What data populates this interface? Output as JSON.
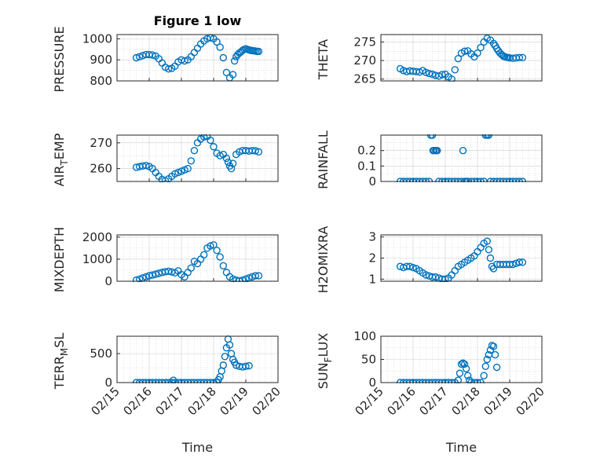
{
  "figure": {
    "title": "Figure 1 low",
    "xlabel": "Time",
    "marker_color": "#0072BD"
  },
  "chart_data": [
    {
      "type": "scatter",
      "ylabel": "PRESSURE",
      "ylabel_sub": "",
      "ylabel_tail": "",
      "ylim": [
        800,
        1020
      ],
      "yticks": [
        800,
        900,
        1000
      ],
      "yminor": [
        850,
        950
      ],
      "xlim": [
        "02/15",
        "02/20"
      ],
      "xticks": [
        "02/15",
        "02/16",
        "02/17",
        "02/18",
        "02/19",
        "02/20"
      ],
      "x_tick_labels_visible": false,
      "grid": true,
      "series": [
        {
          "marker": "circle",
          "x": [
            0.6,
            0.7,
            0.8,
            0.9,
            1.0,
            1.1,
            1.2,
            1.3,
            1.4,
            1.5,
            1.6,
            1.7,
            1.8,
            1.9,
            2.0,
            2.1,
            2.2,
            2.3,
            2.4,
            2.5,
            2.6,
            2.7,
            2.8,
            2.9,
            3.0,
            3.1,
            3.2,
            3.3,
            3.4,
            3.5,
            3.6,
            3.65,
            3.7,
            3.75,
            3.8,
            3.85,
            3.9,
            3.95,
            4.0,
            4.05,
            4.1,
            4.15,
            4.2,
            4.25,
            4.3,
            4.35,
            4.4
          ],
          "y": [
            910,
            915,
            920,
            925,
            925,
            923,
            918,
            905,
            885,
            865,
            857,
            860,
            870,
            890,
            900,
            895,
            900,
            915,
            935,
            955,
            975,
            990,
            1000,
            1005,
            1000,
            985,
            960,
            910,
            840,
            815,
            830,
            895,
            915,
            925,
            932,
            938,
            945,
            950,
            952,
            950,
            947,
            945,
            944,
            943,
            942,
            940,
            940
          ]
        }
      ]
    },
    {
      "type": "scatter",
      "ylabel": "THETA",
      "ylabel_sub": "",
      "ylabel_tail": "",
      "ylim": [
        264.5,
        277
      ],
      "yticks": [
        265,
        270,
        275
      ],
      "yminor": [
        267.5,
        272.5
      ],
      "xlim": [
        "02/15",
        "02/20"
      ],
      "xticks": [
        "02/15",
        "02/16",
        "02/17",
        "02/18",
        "02/19",
        "02/20"
      ],
      "x_tick_labels_visible": false,
      "grid": true,
      "series": [
        {
          "marker": "circle",
          "x": [
            0.6,
            0.7,
            0.8,
            0.9,
            1.0,
            1.1,
            1.2,
            1.3,
            1.4,
            1.5,
            1.6,
            1.7,
            1.8,
            1.9,
            2.0,
            2.1,
            2.2,
            2.3,
            2.4,
            2.5,
            2.6,
            2.7,
            2.8,
            2.9,
            3.0,
            3.1,
            3.2,
            3.3,
            3.4,
            3.5,
            3.55,
            3.6,
            3.65,
            3.7,
            3.75,
            3.8,
            3.85,
            3.9,
            3.95,
            4.0,
            4.1,
            4.2,
            4.3,
            4.4
          ],
          "y": [
            267.8,
            267.3,
            267.0,
            267.2,
            267.1,
            267.0,
            266.9,
            267.3,
            266.8,
            266.5,
            266.3,
            266.0,
            265.8,
            266.2,
            266.3,
            265.6,
            265.0,
            267.5,
            270.5,
            272.0,
            272.5,
            272.6,
            271.8,
            271.0,
            272.0,
            273.5,
            275.0,
            276.0,
            275.5,
            274.6,
            274.0,
            273.2,
            272.6,
            272.0,
            271.6,
            271.2,
            271.0,
            270.9,
            270.8,
            270.7,
            270.6,
            270.7,
            270.8,
            270.8
          ]
        }
      ]
    },
    {
      "type": "scatter",
      "ylabel": "AIR",
      "ylabel_sub": "T",
      "ylabel_tail": "EMP",
      "ylim": [
        255,
        273
      ],
      "yticks": [
        260,
        270
      ],
      "yminor": [
        255,
        265
      ],
      "xlim": [
        "02/15",
        "02/20"
      ],
      "xticks": [
        "02/15",
        "02/16",
        "02/17",
        "02/18",
        "02/19",
        "02/20"
      ],
      "x_tick_labels_visible": false,
      "grid": true,
      "series": [
        {
          "marker": "circle",
          "x": [
            0.6,
            0.7,
            0.8,
            0.9,
            1.0,
            1.1,
            1.2,
            1.3,
            1.4,
            1.5,
            1.6,
            1.7,
            1.8,
            1.9,
            2.0,
            2.1,
            2.2,
            2.3,
            2.4,
            2.5,
            2.6,
            2.7,
            2.8,
            2.9,
            3.0,
            3.1,
            3.2,
            3.3,
            3.4,
            3.45,
            3.5,
            3.55,
            3.6,
            3.7,
            3.8,
            3.9,
            4.0,
            4.1,
            4.2,
            4.3,
            4.4
          ],
          "y": [
            260.5,
            260.8,
            261.0,
            261.2,
            260.8,
            260.0,
            258.5,
            257.0,
            255.8,
            255.3,
            256.0,
            257.0,
            258.0,
            258.5,
            259.0,
            259.5,
            260.0,
            263.0,
            267.0,
            270.0,
            271.5,
            272.3,
            272.5,
            271.0,
            268.5,
            266.0,
            265.0,
            265.5,
            264.0,
            262.5,
            261.0,
            260.0,
            262.0,
            265.5,
            266.5,
            267.0,
            267.0,
            266.8,
            267.0,
            266.9,
            266.5
          ]
        }
      ]
    },
    {
      "type": "scatter",
      "ylabel": "RAINFALL",
      "ylabel_sub": "",
      "ylabel_tail": "",
      "ylim": [
        0,
        0.3
      ],
      "yticks": [
        0,
        0.1,
        0.2
      ],
      "yminor": [
        0.05,
        0.15,
        0.25
      ],
      "xlim": [
        "02/15",
        "02/20"
      ],
      "xticks": [
        "02/15",
        "02/16",
        "02/17",
        "02/18",
        "02/19",
        "02/20"
      ],
      "x_tick_labels_visible": false,
      "grid": true,
      "series": [
        {
          "marker": "circle",
          "x": [
            0.6,
            0.7,
            0.8,
            0.9,
            1.0,
            1.1,
            1.2,
            1.3,
            1.4,
            1.5,
            1.55,
            1.6,
            1.62,
            1.65,
            1.7,
            1.72,
            1.75,
            1.8,
            1.9,
            2.0,
            2.1,
            2.2,
            2.3,
            2.4,
            2.5,
            2.55,
            2.6,
            2.65,
            2.7,
            2.8,
            2.9,
            3.0,
            3.1,
            3.2,
            3.25,
            3.3,
            3.35,
            3.4,
            3.5,
            3.6,
            3.7,
            3.8,
            3.9,
            4.0,
            4.1,
            4.2,
            4.3,
            4.4
          ],
          "y": [
            0,
            0,
            0,
            0,
            0,
            0,
            0,
            0,
            0,
            0,
            0.3,
            0.3,
            0.2,
            0.2,
            0.2,
            0.2,
            0.2,
            0,
            0,
            0,
            0,
            0,
            0,
            0,
            0,
            0.2,
            0,
            0,
            0,
            0,
            0,
            0,
            0,
            0,
            0.3,
            0.3,
            0.3,
            0,
            0,
            0,
            0,
            0,
            0,
            0,
            0,
            0,
            0,
            0
          ]
        }
      ]
    },
    {
      "type": "scatter",
      "ylabel": "MIXDEPTH",
      "ylabel_sub": "",
      "ylabel_tail": "",
      "ylim": [
        0,
        2100
      ],
      "yticks": [
        0,
        1000,
        2000
      ],
      "yminor": [
        500,
        1500
      ],
      "xlim": [
        "02/15",
        "02/20"
      ],
      "xticks": [
        "02/15",
        "02/16",
        "02/17",
        "02/18",
        "02/19",
        "02/20"
      ],
      "x_tick_labels_visible": false,
      "grid": true,
      "series": [
        {
          "marker": "circle",
          "x": [
            0.6,
            0.7,
            0.8,
            0.9,
            1.0,
            1.1,
            1.2,
            1.3,
            1.4,
            1.5,
            1.6,
            1.7,
            1.8,
            1.9,
            2.0,
            2.1,
            2.2,
            2.3,
            2.4,
            2.5,
            2.6,
            2.7,
            2.8,
            2.9,
            3.0,
            3.1,
            3.2,
            3.3,
            3.4,
            3.5,
            3.6,
            3.7,
            3.8,
            3.9,
            4.0,
            4.1,
            4.2,
            4.3,
            4.4
          ],
          "y": [
            50,
            100,
            150,
            200,
            250,
            280,
            320,
            360,
            400,
            430,
            450,
            420,
            380,
            470,
            300,
            200,
            400,
            600,
            900,
            800,
            1000,
            1200,
            1500,
            1600,
            1650,
            1400,
            1100,
            700,
            400,
            200,
            100,
            50,
            20,
            50,
            100,
            150,
            200,
            250,
            250
          ]
        }
      ]
    },
    {
      "type": "scatter",
      "ylabel": "H2OMIXRA",
      "ylabel_sub": "",
      "ylabel_tail": "",
      "ylim": [
        0.9,
        3.1
      ],
      "yticks": [
        1,
        2,
        3
      ],
      "yminor": [
        1.5,
        2.5
      ],
      "xlim": [
        "02/15",
        "02/20"
      ],
      "xticks": [
        "02/15",
        "02/16",
        "02/17",
        "02/18",
        "02/19",
        "02/20"
      ],
      "x_tick_labels_visible": false,
      "grid": true,
      "series": [
        {
          "marker": "circle",
          "x": [
            0.6,
            0.7,
            0.8,
            0.9,
            1.0,
            1.1,
            1.2,
            1.3,
            1.4,
            1.5,
            1.6,
            1.7,
            1.8,
            1.9,
            2.0,
            2.1,
            2.2,
            2.3,
            2.4,
            2.5,
            2.6,
            2.7,
            2.8,
            2.9,
            3.0,
            3.1,
            3.2,
            3.3,
            3.35,
            3.4,
            3.45,
            3.5,
            3.6,
            3.7,
            3.8,
            3.9,
            4.0,
            4.1,
            4.2,
            4.3,
            4.4
          ],
          "y": [
            1.6,
            1.55,
            1.6,
            1.6,
            1.55,
            1.5,
            1.4,
            1.3,
            1.2,
            1.15,
            1.1,
            1.1,
            1.05,
            1.0,
            1.0,
            1.05,
            1.2,
            1.4,
            1.6,
            1.7,
            1.8,
            1.9,
            2.0,
            2.1,
            2.3,
            2.5,
            2.7,
            2.8,
            2.4,
            2.0,
            1.6,
            1.5,
            1.7,
            1.7,
            1.7,
            1.7,
            1.7,
            1.7,
            1.75,
            1.8,
            1.8
          ]
        }
      ]
    },
    {
      "type": "scatter",
      "ylabel": "TERR",
      "ylabel_sub": "M",
      "ylabel_tail": "SL",
      "ylim": [
        0,
        800
      ],
      "yticks": [
        0,
        500
      ],
      "yminor": [
        250,
        750
      ],
      "xlim": [
        "02/15",
        "02/20"
      ],
      "xticks": [
        "02/15",
        "02/16",
        "02/17",
        "02/18",
        "02/19",
        "02/20"
      ],
      "x_tick_labels_visible": true,
      "grid": true,
      "series": [
        {
          "marker": "circle",
          "x": [
            0.6,
            0.7,
            0.8,
            0.9,
            1.0,
            1.1,
            1.2,
            1.3,
            1.4,
            1.5,
            1.6,
            1.7,
            1.75,
            1.8,
            1.9,
            2.0,
            2.1,
            2.2,
            2.3,
            2.4,
            2.5,
            2.6,
            2.7,
            2.8,
            2.9,
            3.0,
            3.1,
            3.15,
            3.2,
            3.25,
            3.3,
            3.35,
            3.4,
            3.45,
            3.5,
            3.55,
            3.6,
            3.65,
            3.7,
            3.8,
            3.9,
            4.0,
            4.1
          ],
          "y": [
            0,
            0,
            0,
            0,
            0,
            0,
            0,
            0,
            0,
            0,
            0,
            0,
            40,
            0,
            0,
            0,
            0,
            0,
            0,
            0,
            0,
            0,
            0,
            0,
            0,
            0,
            0,
            50,
            100,
            200,
            300,
            450,
            600,
            750,
            650,
            500,
            400,
            350,
            300,
            280,
            270,
            280,
            290
          ]
        }
      ]
    },
    {
      "type": "scatter",
      "ylabel": "SUN",
      "ylabel_sub": "F",
      "ylabel_tail": "LUX",
      "ylim": [
        0,
        100
      ],
      "yticks": [
        0,
        50,
        100
      ],
      "yminor": [
        25,
        75
      ],
      "xlim": [
        "02/15",
        "02/20"
      ],
      "xticks": [
        "02/15",
        "02/16",
        "02/17",
        "02/18",
        "02/19",
        "02/20"
      ],
      "x_tick_labels_visible": true,
      "grid": true,
      "series": [
        {
          "marker": "circle",
          "x": [
            0.6,
            0.7,
            0.8,
            0.9,
            1.0,
            1.1,
            1.2,
            1.3,
            1.4,
            1.5,
            1.6,
            1.7,
            1.8,
            1.9,
            2.0,
            2.1,
            2.2,
            2.3,
            2.4,
            2.45,
            2.5,
            2.55,
            2.6,
            2.65,
            2.7,
            2.75,
            2.8,
            2.9,
            3.0,
            3.1,
            3.2,
            3.25,
            3.3,
            3.35,
            3.4,
            3.45,
            3.5,
            3.55,
            3.6
          ],
          "y": [
            0,
            0,
            0,
            0,
            0,
            0,
            0,
            0,
            0,
            0,
            0,
            0,
            0,
            0,
            0,
            0,
            0,
            0,
            5,
            20,
            40,
            42,
            40,
            30,
            15,
            5,
            0,
            0,
            0,
            0,
            15,
            35,
            50,
            60,
            70,
            80,
            78,
            60,
            33
          ]
        }
      ]
    }
  ]
}
